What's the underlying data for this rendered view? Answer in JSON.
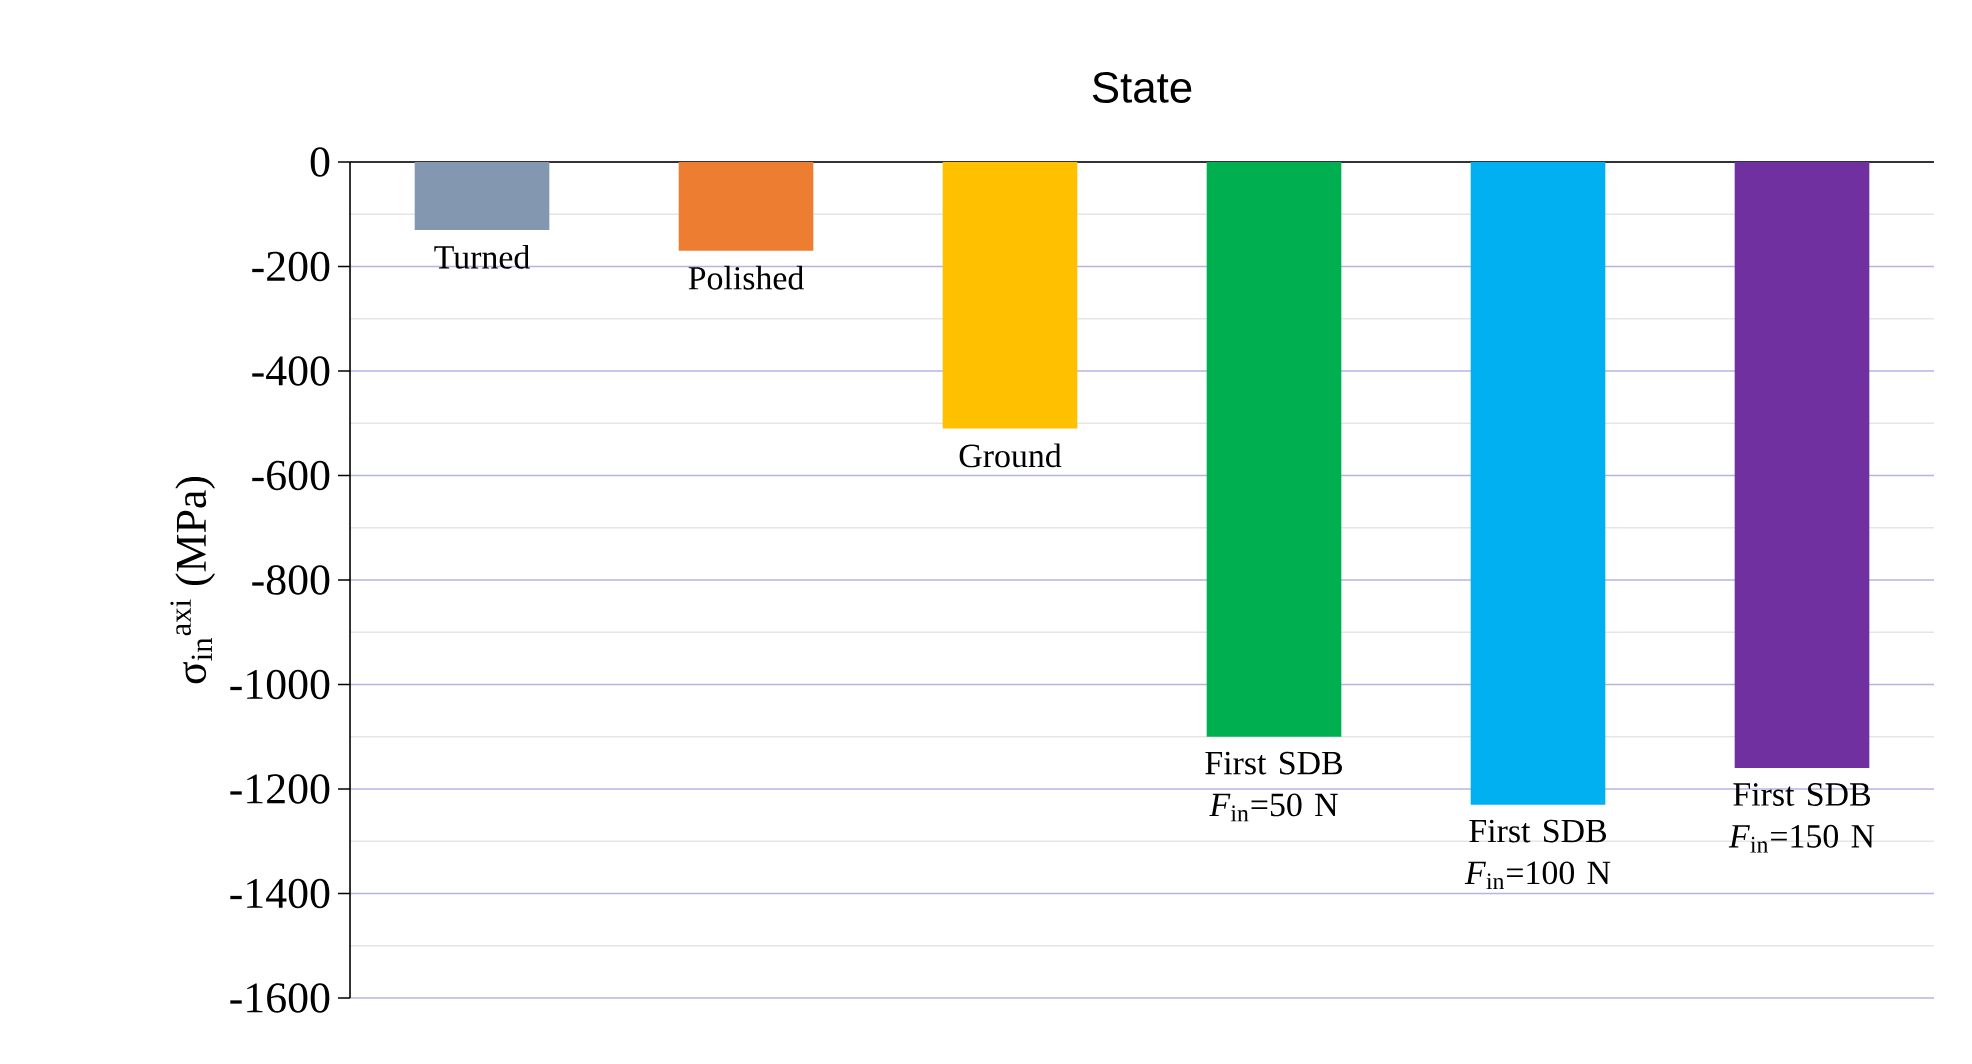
{
  "chart_data": {
    "type": "bar",
    "xlabel": "State",
    "ylabel": "σ$_{in}$$^{axi}$ (MPa)",
    "categories": [
      "Turned",
      "Polished",
      "Ground",
      "First SDB *F*$_{in}$=50 N",
      "First SDB *F*$_{in}$=100 N",
      "First SDB *F*$_{in}$=150 N"
    ],
    "values": [
      -130,
      -170,
      -510,
      -1100,
      -1230,
      -1160
    ],
    "colors": [
      "#8497b0",
      "#ed7d31",
      "#ffc000",
      "#00b050",
      "#00b0f0",
      "#7030a0"
    ],
    "ylim": [
      -1600,
      0
    ],
    "yticks": [
      -1600,
      {
        "value": -1500,
        "label": null
      },
      -1400,
      {
        "value": -1300,
        "label": null
      },
      -1200,
      {
        "value": -1100,
        "label": null
      },
      -1000,
      {
        "value": -900,
        "label": null
      },
      -800,
      {
        "value": -700,
        "label": null
      },
      -600,
      {
        "value": -500,
        "label": null
      },
      -400,
      {
        "value": -300,
        "label": null
      },
      -200,
      {
        "value": -100,
        "label": null
      },
      0
    ],
    "grid": "y"
  }
}
